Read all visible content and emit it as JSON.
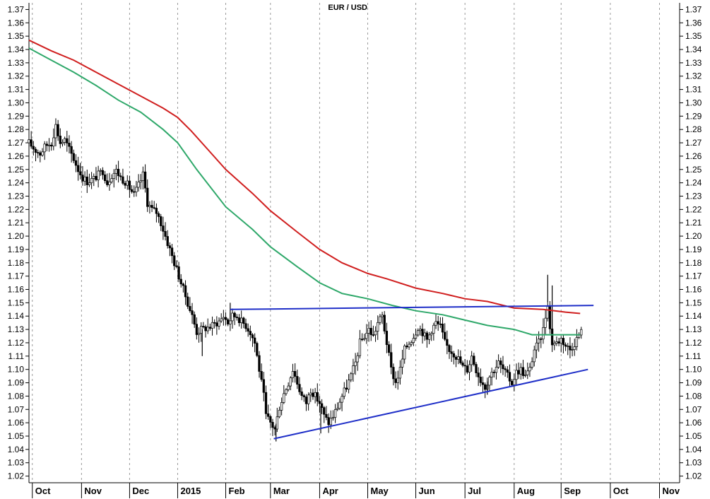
{
  "chart_data": {
    "type": "candlestick",
    "title": "EUR / USD",
    "ylim": [
      1.015,
      1.375
    ],
    "y_ticks": [
      1.02,
      1.03,
      1.04,
      1.05,
      1.06,
      1.07,
      1.08,
      1.09,
      1.1,
      1.11,
      1.12,
      1.13,
      1.14,
      1.15,
      1.16,
      1.17,
      1.18,
      1.19,
      1.2,
      1.21,
      1.22,
      1.23,
      1.24,
      1.25,
      1.26,
      1.27,
      1.28,
      1.29,
      1.3,
      1.31,
      1.32,
      1.33,
      1.34,
      1.35,
      1.36,
      1.37
    ],
    "x_labels": [
      "Oct",
      "Nov",
      "Dec",
      "2015",
      "Feb",
      "Mar",
      "Apr",
      "May",
      "Jun",
      "Jul",
      "Aug",
      "Sep",
      "Oct",
      "Nov"
    ],
    "x_range_weeks": [
      0,
      58.2
    ],
    "x_label_weeks": [
      0.3,
      4.7,
      9.0,
      13.3,
      17.6,
      21.6,
      26.0,
      30.3,
      34.6,
      39.0,
      43.4,
      47.6,
      52.0,
      56.4
    ],
    "price_anchors": [
      [
        0.0,
        1.27
      ],
      [
        0.5,
        1.265
      ],
      [
        1.0,
        1.262
      ],
      [
        1.5,
        1.268
      ],
      [
        2.0,
        1.27
      ],
      [
        2.4,
        1.283
      ],
      [
        2.8,
        1.27
      ],
      [
        3.2,
        1.272
      ],
      [
        3.6,
        1.265
      ],
      [
        4.0,
        1.258
      ],
      [
        4.4,
        1.25
      ],
      [
        4.8,
        1.244
      ],
      [
        5.2,
        1.241
      ],
      [
        5.8,
        1.243
      ],
      [
        6.2,
        1.246
      ],
      [
        6.6,
        1.249
      ],
      [
        7.0,
        1.24
      ],
      [
        7.4,
        1.246
      ],
      [
        7.8,
        1.249
      ],
      [
        8.2,
        1.244
      ],
      [
        8.6,
        1.241
      ],
      [
        9.0,
        1.236
      ],
      [
        9.4,
        1.231
      ],
      [
        9.8,
        1.238
      ],
      [
        10.2,
        1.246
      ],
      [
        10.6,
        1.225
      ],
      [
        11.0,
        1.22
      ],
      [
        11.4,
        1.218
      ],
      [
        11.8,
        1.21
      ],
      [
        12.2,
        1.2
      ],
      [
        12.6,
        1.19
      ],
      [
        13.0,
        1.18
      ],
      [
        13.4,
        1.17
      ],
      [
        13.8,
        1.16
      ],
      [
        14.2,
        1.15
      ],
      [
        14.6,
        1.14
      ],
      [
        15.0,
        1.128
      ],
      [
        15.4,
        1.13
      ],
      [
        15.8,
        1.131
      ],
      [
        16.2,
        1.132
      ],
      [
        16.6,
        1.134
      ],
      [
        17.0,
        1.136
      ],
      [
        17.4,
        1.14
      ],
      [
        17.8,
        1.135
      ],
      [
        18.2,
        1.14
      ],
      [
        18.6,
        1.14
      ],
      [
        19.0,
        1.136
      ],
      [
        19.4,
        1.133
      ],
      [
        19.8,
        1.128
      ],
      [
        20.2,
        1.12
      ],
      [
        20.6,
        1.1
      ],
      [
        21.0,
        1.08
      ],
      [
        21.2,
        1.065
      ],
      [
        21.6,
        1.06
      ],
      [
        22.0,
        1.055
      ],
      [
        22.4,
        1.072
      ],
      [
        22.8,
        1.082
      ],
      [
        23.2,
        1.09
      ],
      [
        23.6,
        1.1
      ],
      [
        24.0,
        1.09
      ],
      [
        24.4,
        1.08
      ],
      [
        24.8,
        1.075
      ],
      [
        25.2,
        1.085
      ],
      [
        25.6,
        1.08
      ],
      [
        26.0,
        1.075
      ],
      [
        26.4,
        1.065
      ],
      [
        26.8,
        1.06
      ],
      [
        27.2,
        1.065
      ],
      [
        27.6,
        1.072
      ],
      [
        28.0,
        1.08
      ],
      [
        28.4,
        1.087
      ],
      [
        28.8,
        1.095
      ],
      [
        29.2,
        1.105
      ],
      [
        29.6,
        1.12
      ],
      [
        30.0,
        1.125
      ],
      [
        30.4,
        1.13
      ],
      [
        30.8,
        1.125
      ],
      [
        31.2,
        1.135
      ],
      [
        31.6,
        1.14
      ],
      [
        32.0,
        1.12
      ],
      [
        32.4,
        1.1
      ],
      [
        32.8,
        1.09
      ],
      [
        33.2,
        1.1
      ],
      [
        33.6,
        1.115
      ],
      [
        34.0,
        1.12
      ],
      [
        34.4,
        1.125
      ],
      [
        34.8,
        1.132
      ],
      [
        35.2,
        1.128
      ],
      [
        35.6,
        1.122
      ],
      [
        36.0,
        1.13
      ],
      [
        36.4,
        1.135
      ],
      [
        36.8,
        1.132
      ],
      [
        37.2,
        1.12
      ],
      [
        37.6,
        1.115
      ],
      [
        38.0,
        1.112
      ],
      [
        38.4,
        1.108
      ],
      [
        38.8,
        1.102
      ],
      [
        39.2,
        1.1
      ],
      [
        39.6,
        1.11
      ],
      [
        40.0,
        1.1
      ],
      [
        40.4,
        1.092
      ],
      [
        40.8,
        1.087
      ],
      [
        41.2,
        1.095
      ],
      [
        41.6,
        1.1
      ],
      [
        42.0,
        1.105
      ],
      [
        42.4,
        1.1
      ],
      [
        42.8,
        1.095
      ],
      [
        43.2,
        1.09
      ],
      [
        43.6,
        1.098
      ],
      [
        44.0,
        1.1
      ],
      [
        44.4,
        1.095
      ],
      [
        44.8,
        1.1
      ],
      [
        45.2,
        1.115
      ],
      [
        45.6,
        1.12
      ],
      [
        46.0,
        1.13
      ],
      [
        46.2,
        1.14
      ],
      [
        46.4,
        1.15
      ],
      [
        46.6,
        1.13
      ],
      [
        46.8,
        1.12
      ],
      [
        47.2,
        1.12
      ],
      [
        47.6,
        1.123
      ],
      [
        48.0,
        1.118
      ],
      [
        48.4,
        1.115
      ],
      [
        48.8,
        1.12
      ],
      [
        49.2,
        1.126
      ],
      [
        49.4,
        1.128
      ]
    ],
    "spikes": [
      [
        4.6,
        1.255
      ],
      [
        22.1,
        1.046
      ],
      [
        26.1,
        1.052
      ],
      [
        41.0,
        1.081
      ],
      [
        46.4,
        1.171
      ],
      [
        46.8,
        1.163
      ],
      [
        15.5,
        1.11
      ],
      [
        18.0,
        1.15
      ]
    ],
    "series": [
      {
        "kind": "moving-average",
        "color": "#d01f1f",
        "points": [
          [
            0.0,
            1.347
          ],
          [
            2.0,
            1.339
          ],
          [
            4.0,
            1.332
          ],
          [
            6.0,
            1.323
          ],
          [
            8.0,
            1.314
          ],
          [
            10.0,
            1.305
          ],
          [
            12.0,
            1.296
          ],
          [
            13.3,
            1.289
          ],
          [
            14.5,
            1.279
          ],
          [
            16.0,
            1.265
          ],
          [
            17.6,
            1.25
          ],
          [
            20.0,
            1.232
          ],
          [
            21.6,
            1.219
          ],
          [
            24.0,
            1.203
          ],
          [
            26.0,
            1.19
          ],
          [
            28.0,
            1.18
          ],
          [
            30.3,
            1.172
          ],
          [
            32.0,
            1.168
          ],
          [
            34.6,
            1.161
          ],
          [
            37.0,
            1.157
          ],
          [
            39.0,
            1.153
          ],
          [
            41.0,
            1.151
          ],
          [
            43.4,
            1.146
          ],
          [
            46.0,
            1.145
          ],
          [
            48.0,
            1.143
          ],
          [
            49.3,
            1.142
          ]
        ]
      },
      {
        "kind": "moving-average",
        "color": "#2fa86a",
        "points": [
          [
            0.0,
            1.341
          ],
          [
            2.0,
            1.332
          ],
          [
            4.0,
            1.323
          ],
          [
            6.0,
            1.313
          ],
          [
            8.0,
            1.302
          ],
          [
            10.0,
            1.293
          ],
          [
            12.0,
            1.28
          ],
          [
            13.3,
            1.27
          ],
          [
            15.0,
            1.25
          ],
          [
            17.6,
            1.222
          ],
          [
            20.0,
            1.205
          ],
          [
            21.6,
            1.192
          ],
          [
            24.0,
            1.177
          ],
          [
            26.0,
            1.165
          ],
          [
            28.0,
            1.157
          ],
          [
            30.3,
            1.153
          ],
          [
            32.5,
            1.148
          ],
          [
            34.6,
            1.144
          ],
          [
            37.0,
            1.141
          ],
          [
            39.0,
            1.137
          ],
          [
            41.0,
            1.133
          ],
          [
            43.4,
            1.13
          ],
          [
            45.0,
            1.126
          ],
          [
            47.0,
            1.126
          ],
          [
            49.3,
            1.126
          ]
        ]
      }
    ],
    "trendlines": [
      {
        "color": "#1f2fc8",
        "from": [
          18.0,
          1.145
        ],
        "to": [
          50.5,
          1.148
        ]
      },
      {
        "color": "#1f2fc8",
        "from": [
          21.9,
          1.048
        ],
        "to": [
          50.0,
          1.1
        ]
      }
    ]
  }
}
